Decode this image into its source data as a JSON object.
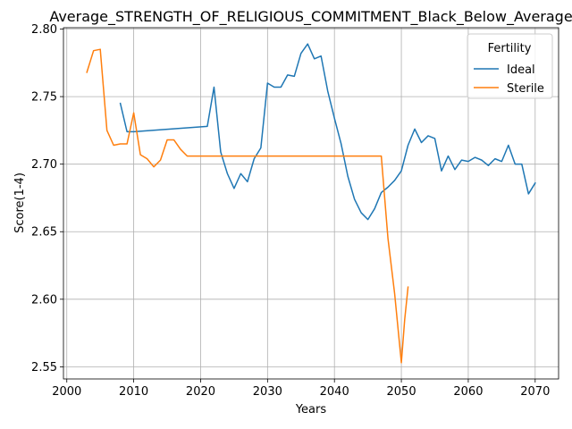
{
  "chart_data": {
    "type": "line",
    "title": "Average_STRENGTH_OF_RELIGIOUS_COMMITMENT_Black_Below_Average",
    "xlabel": "Years",
    "ylabel": "Score(1-4)",
    "xlim": [
      1999.5,
      2073.5
    ],
    "ylim": [
      2.541,
      2.801
    ],
    "xticks": [
      2000,
      2010,
      2020,
      2030,
      2040,
      2050,
      2060,
      2070
    ],
    "yticks": [
      2.55,
      2.6,
      2.65,
      2.7,
      2.75,
      2.8
    ],
    "xtick_labels": [
      "2000",
      "2010",
      "2020",
      "2030",
      "2040",
      "2050",
      "2060",
      "2070"
    ],
    "ytick_labels": [
      "2.55",
      "2.60",
      "2.65",
      "2.70",
      "2.75",
      "2.80"
    ],
    "grid": true,
    "legend": {
      "title": "Fertility",
      "position": "top-right"
    },
    "series": [
      {
        "name": "Ideal",
        "color": "#1f77b4",
        "points": [
          [
            2008,
            2.745
          ],
          [
            2009,
            2.724
          ],
          [
            2010,
            2.724
          ],
          [
            2021,
            2.728
          ],
          [
            2022,
            2.757
          ],
          [
            2023,
            2.709
          ],
          [
            2024,
            2.693
          ],
          [
            2025,
            2.682
          ],
          [
            2026,
            2.693
          ],
          [
            2027,
            2.687
          ],
          [
            2028,
            2.704
          ],
          [
            2029,
            2.712
          ],
          [
            2030,
            2.76
          ],
          [
            2031,
            2.757
          ],
          [
            2032,
            2.757
          ],
          [
            2033,
            2.766
          ],
          [
            2034,
            2.765
          ],
          [
            2035,
            2.782
          ],
          [
            2036,
            2.789
          ],
          [
            2037,
            2.778
          ],
          [
            2038,
            2.78
          ],
          [
            2039,
            2.754
          ],
          [
            2040,
            2.734
          ],
          [
            2041,
            2.715
          ],
          [
            2042,
            2.691
          ],
          [
            2043,
            2.674
          ],
          [
            2044,
            2.664
          ],
          [
            2045,
            2.659
          ],
          [
            2046,
            2.667
          ],
          [
            2047,
            2.679
          ],
          [
            2048,
            2.683
          ],
          [
            2049,
            2.688
          ],
          [
            2050,
            2.695
          ],
          [
            2051,
            2.714
          ],
          [
            2052,
            2.726
          ],
          [
            2053,
            2.716
          ],
          [
            2054,
            2.721
          ],
          [
            2055,
            2.719
          ],
          [
            2056,
            2.695
          ],
          [
            2057,
            2.706
          ],
          [
            2058,
            2.696
          ],
          [
            2059,
            2.703
          ],
          [
            2060,
            2.702
          ],
          [
            2061,
            2.705
          ],
          [
            2062,
            2.703
          ],
          [
            2063,
            2.699
          ],
          [
            2064,
            2.704
          ],
          [
            2065,
            2.702
          ],
          [
            2066,
            2.714
          ],
          [
            2067,
            2.7
          ],
          [
            2068,
            2.7
          ],
          [
            2069,
            2.678
          ],
          [
            2070,
            2.686
          ]
        ]
      },
      {
        "name": "Sterile",
        "color": "#ff7f0e",
        "points": [
          [
            2003,
            2.768
          ],
          [
            2004,
            2.784
          ],
          [
            2005,
            2.785
          ],
          [
            2006,
            2.725
          ],
          [
            2007,
            2.714
          ],
          [
            2008,
            2.715
          ],
          [
            2009,
            2.715
          ],
          [
            2010,
            2.738
          ],
          [
            2011,
            2.707
          ],
          [
            2012,
            2.704
          ],
          [
            2013,
            2.698
          ],
          [
            2014,
            2.703
          ],
          [
            2015,
            2.718
          ],
          [
            2016,
            2.718
          ],
          [
            2017,
            2.711
          ],
          [
            2018,
            2.706
          ],
          [
            2047,
            2.706
          ],
          [
            2048,
            2.645
          ],
          [
            2049,
            2.604
          ],
          [
            2050,
            2.553
          ],
          [
            2050.5,
            2.585
          ],
          [
            2051,
            2.609
          ]
        ]
      }
    ]
  }
}
